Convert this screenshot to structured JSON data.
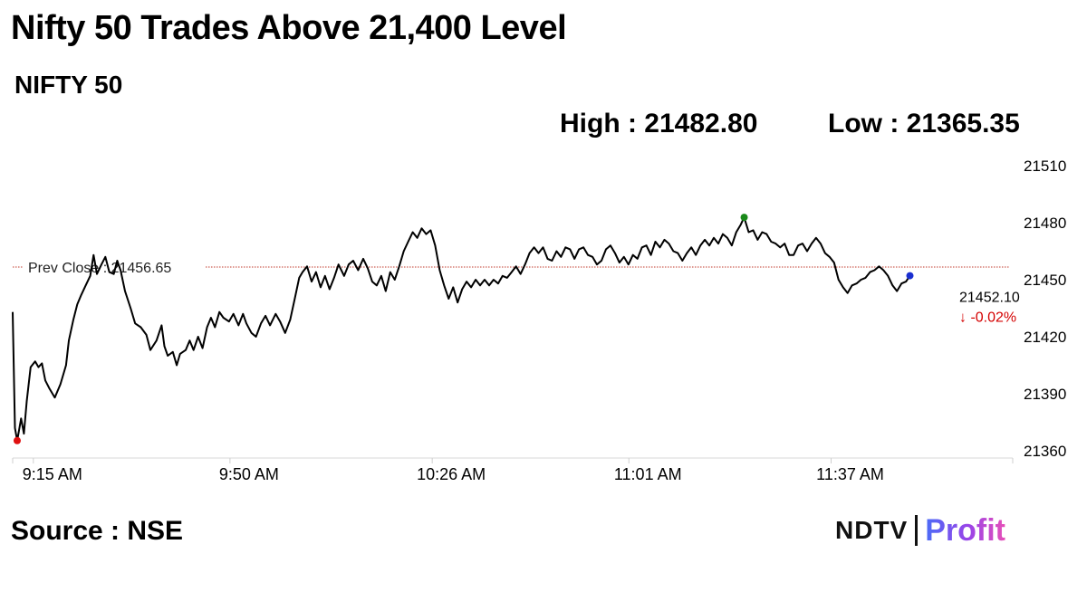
{
  "header": {
    "title": "Nifty 50 Trades Above 21,400 Level",
    "subtitle": "NIFTY 50",
    "high_label": "High : 21482.80",
    "low_label": "Low : 21365.35"
  },
  "footer": {
    "source": "Source : NSE",
    "brand_ndtv": "NDTV",
    "brand_profit": "Profit"
  },
  "colors": {
    "line": "#000000",
    "prev_close": "#c0392b",
    "low_marker": "#e01010",
    "high_marker": "#1a8a1a",
    "last_marker": "#1a2fd0",
    "down": "#d40000"
  },
  "chart_data": {
    "type": "line",
    "title": "",
    "ylim": [
      21360,
      21510
    ],
    "y_ticks": [
      21360,
      21390,
      21420,
      21450,
      21480,
      21510
    ],
    "x_tick_labels": [
      "9:15 AM",
      "9:50 AM",
      "10:26 AM",
      "11:01 AM",
      "11:37 AM"
    ],
    "x_tick_minutes": [
      0,
      35,
      71,
      106,
      142
    ],
    "x_range_minutes": [
      -4,
      174
    ],
    "prev_close": 21456.65,
    "prev_close_label": "Prev Close : 21456.65",
    "last_value_label": "21452.10",
    "last_change_label": "↓ -0.02%",
    "high": 21482.8,
    "low": 21365.35,
    "series": [
      {
        "points": [
          [
            -4,
            21433
          ],
          [
            -3.6,
            21372
          ],
          [
            -3.2,
            21365.35
          ],
          [
            -2.5,
            21377
          ],
          [
            -2,
            21369
          ],
          [
            -1.5,
            21386
          ],
          [
            -0.8,
            21404
          ],
          [
            0,
            21407
          ],
          [
            0.6,
            21404
          ],
          [
            1.2,
            21406
          ],
          [
            1.8,
            21397
          ],
          [
            2.5,
            21393
          ],
          [
            3.5,
            21388
          ],
          [
            4.5,
            21395
          ],
          [
            5.5,
            21405
          ],
          [
            6,
            21418
          ],
          [
            6.8,
            21429
          ],
          [
            7.5,
            21437
          ],
          [
            8.2,
            21442
          ],
          [
            9,
            21447
          ],
          [
            9.8,
            21452
          ],
          [
            10.4,
            21463
          ],
          [
            11,
            21453
          ],
          [
            11.8,
            21458
          ],
          [
            12.5,
            21462
          ],
          [
            13.2,
            21454
          ],
          [
            14,
            21453
          ],
          [
            14.6,
            21460
          ],
          [
            15.2,
            21455
          ],
          [
            16,
            21444
          ],
          [
            17,
            21435
          ],
          [
            17.8,
            21427
          ],
          [
            18.8,
            21425
          ],
          [
            19.8,
            21421
          ],
          [
            20.5,
            21413
          ],
          [
            21.6,
            21418
          ],
          [
            22.5,
            21426
          ],
          [
            23,
            21415
          ],
          [
            23.6,
            21410
          ],
          [
            24.5,
            21412
          ],
          [
            25.2,
            21405
          ],
          [
            25.8,
            21411
          ],
          [
            26.8,
            21413
          ],
          [
            27.5,
            21418
          ],
          [
            28.2,
            21413
          ],
          [
            29,
            21420
          ],
          [
            29.8,
            21414
          ],
          [
            30.6,
            21425
          ],
          [
            31.3,
            21430
          ],
          [
            32,
            21425
          ],
          [
            32.8,
            21433
          ],
          [
            33.5,
            21430
          ],
          [
            34.5,
            21428
          ],
          [
            35.3,
            21432
          ],
          [
            36.2,
            21426
          ],
          [
            37,
            21432
          ],
          [
            37.6,
            21427
          ],
          [
            38.5,
            21422
          ],
          [
            39.3,
            21420
          ],
          [
            40.2,
            21427
          ],
          [
            41,
            21431
          ],
          [
            41.8,
            21426
          ],
          [
            42.8,
            21432
          ],
          [
            43.6,
            21428
          ],
          [
            44.5,
            21422
          ],
          [
            45.4,
            21429
          ],
          [
            46.2,
            21440
          ],
          [
            47,
            21451
          ],
          [
            47.6,
            21454
          ],
          [
            48.4,
            21457
          ],
          [
            49.2,
            21449
          ],
          [
            50,
            21454
          ],
          [
            50.8,
            21446
          ],
          [
            51.6,
            21452
          ],
          [
            52.4,
            21445
          ],
          [
            53.2,
            21451
          ],
          [
            54,
            21458
          ],
          [
            55,
            21452
          ],
          [
            55.8,
            21458
          ],
          [
            56.6,
            21460
          ],
          [
            57.5,
            21455
          ],
          [
            58.4,
            21461
          ],
          [
            59.2,
            21456
          ],
          [
            60,
            21449
          ],
          [
            60.8,
            21447
          ],
          [
            61.6,
            21452
          ],
          [
            62.4,
            21444
          ],
          [
            63.2,
            21454
          ],
          [
            64,
            21450
          ],
          [
            64.8,
            21457
          ],
          [
            65.6,
            21465
          ],
          [
            66.4,
            21470
          ],
          [
            67.2,
            21475
          ],
          [
            68,
            21472
          ],
          [
            68.8,
            21477
          ],
          [
            69.6,
            21474
          ],
          [
            70.4,
            21476
          ],
          [
            71.2,
            21468
          ],
          [
            72,
            21455
          ],
          [
            72.8,
            21447
          ],
          [
            73.6,
            21440
          ],
          [
            74.4,
            21446
          ],
          [
            75.2,
            21438
          ],
          [
            76,
            21445
          ],
          [
            76.8,
            21449
          ],
          [
            77.6,
            21446
          ],
          [
            78.4,
            21450
          ],
          [
            79.2,
            21447
          ],
          [
            80,
            21450
          ],
          [
            80.8,
            21447
          ],
          [
            81.6,
            21450
          ],
          [
            82.4,
            21448
          ],
          [
            83.2,
            21452
          ],
          [
            84,
            21451
          ],
          [
            84.8,
            21454
          ],
          [
            85.6,
            21457
          ],
          [
            86.4,
            21453
          ],
          [
            87.2,
            21458
          ],
          [
            88,
            21464
          ],
          [
            88.8,
            21467
          ],
          [
            89.6,
            21464
          ],
          [
            90.4,
            21467
          ],
          [
            91.2,
            21461
          ],
          [
            92,
            21460
          ],
          [
            92.8,
            21465
          ],
          [
            93.6,
            21462
          ],
          [
            94.4,
            21467
          ],
          [
            95.2,
            21466
          ],
          [
            96,
            21461
          ],
          [
            96.8,
            21466
          ],
          [
            97.6,
            21467
          ],
          [
            98.4,
            21463
          ],
          [
            99.2,
            21462
          ],
          [
            100,
            21458
          ],
          [
            100.8,
            21460
          ],
          [
            101.6,
            21466
          ],
          [
            102.4,
            21468
          ],
          [
            103.2,
            21464
          ],
          [
            104,
            21459
          ],
          [
            104.8,
            21462
          ],
          [
            105.6,
            21458
          ],
          [
            106.4,
            21463
          ],
          [
            107.2,
            21461
          ],
          [
            108,
            21467
          ],
          [
            108.8,
            21468
          ],
          [
            109.6,
            21463
          ],
          [
            110.4,
            21470
          ],
          [
            111.2,
            21467
          ],
          [
            112,
            21471
          ],
          [
            112.8,
            21469
          ],
          [
            113.6,
            21465
          ],
          [
            114.4,
            21464
          ],
          [
            115.2,
            21460
          ],
          [
            116,
            21464
          ],
          [
            116.8,
            21467
          ],
          [
            117.6,
            21463
          ],
          [
            118.4,
            21468
          ],
          [
            119.2,
            21471
          ],
          [
            120,
            21468
          ],
          [
            120.8,
            21472
          ],
          [
            121.6,
            21469
          ],
          [
            122.4,
            21474
          ],
          [
            123.2,
            21472
          ],
          [
            124,
            21468
          ],
          [
            124.8,
            21475
          ],
          [
            125.6,
            21479
          ],
          [
            126.2,
            21482.8
          ],
          [
            127,
            21475
          ],
          [
            127.8,
            21476
          ],
          [
            128.6,
            21471
          ],
          [
            129.4,
            21475
          ],
          [
            130.2,
            21474
          ],
          [
            131,
            21470
          ],
          [
            131.8,
            21469
          ],
          [
            132.6,
            21467
          ],
          [
            133.4,
            21469
          ],
          [
            134.2,
            21463
          ],
          [
            135,
            21463
          ],
          [
            135.8,
            21468
          ],
          [
            136.6,
            21469
          ],
          [
            137.4,
            21465
          ],
          [
            138.2,
            21469
          ],
          [
            139,
            21472
          ],
          [
            139.8,
            21469
          ],
          [
            140.6,
            21464
          ],
          [
            141.4,
            21462
          ],
          [
            142.2,
            21459
          ],
          [
            143,
            21450
          ],
          [
            143.8,
            21446
          ],
          [
            144.6,
            21443
          ],
          [
            145.4,
            21447
          ],
          [
            146.2,
            21448
          ],
          [
            147,
            21450
          ],
          [
            147.8,
            21451
          ],
          [
            148.6,
            21454
          ],
          [
            149.4,
            21455
          ],
          [
            150.2,
            21457
          ],
          [
            151,
            21455
          ],
          [
            151.8,
            21452
          ],
          [
            152.6,
            21447
          ],
          [
            153.4,
            21444
          ],
          [
            154.2,
            21448
          ],
          [
            155,
            21449
          ],
          [
            155.7,
            21452.1
          ]
        ]
      }
    ]
  }
}
